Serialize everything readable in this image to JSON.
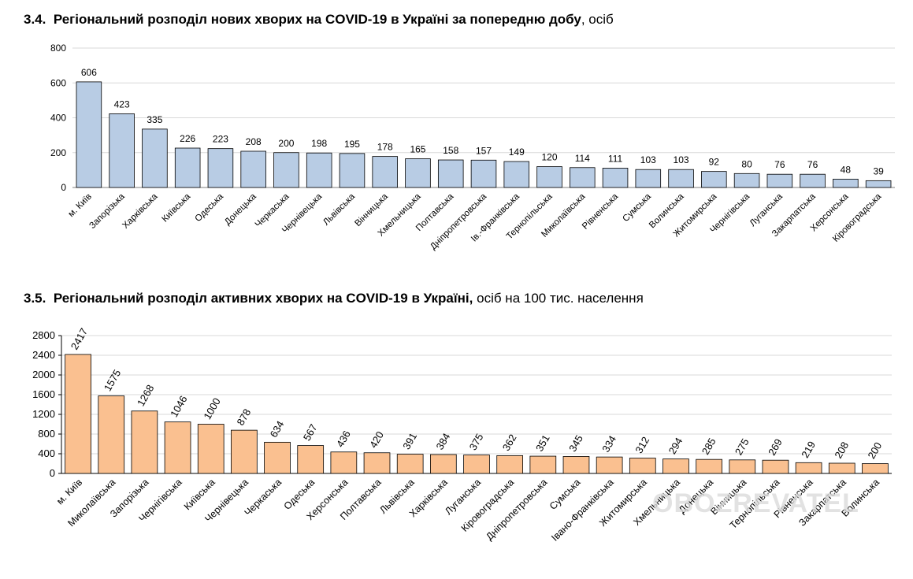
{
  "sections": [
    {
      "number": "3.4.",
      "title_bold": "Регіональний розподіл нових хворих на COVID-19 в Україні за попередню добу",
      "title_normal": ", осіб"
    },
    {
      "number": "3.5.",
      "title_bold": "Регіональний розподіл активних хворих на COVID-19 в Україні,",
      "title_normal": " осіб на 100 тис. населення"
    }
  ],
  "watermark": "OBOZREVATEL",
  "colors": {
    "bar1_fill": "#b8cce4",
    "bar2_fill": "#fac090",
    "bar_stroke": "#000000",
    "grid": "#d9d9d9",
    "axis": "#7f7f7f"
  },
  "chart_data": [
    {
      "type": "bar",
      "title": "Регіональний розподіл нових хворих на COVID-19 в Україні за попередню добу, осіб",
      "categories": [
        "м. Київ",
        "Запорізька",
        "Харківська",
        "Київська",
        "Одеська",
        "Донецька",
        "Черкаська",
        "Чернівецька",
        "Львівська",
        "Вінницька",
        "Хмельницька",
        "Полтавська",
        "Дніпропетровська",
        "Ів.-Франківська",
        "Тернопільська",
        "Миколаївська",
        "Рівненська",
        "Сумська",
        "Волинська",
        "Житомирська",
        "Чернігівська",
        "Луганська",
        "Закарпатська",
        "Херсонська",
        "Кіровоградська"
      ],
      "values": [
        606,
        423,
        335,
        226,
        223,
        208,
        200,
        198,
        195,
        178,
        165,
        158,
        157,
        149,
        120,
        114,
        111,
        103,
        103,
        92,
        80,
        76,
        76,
        48,
        39
      ],
      "ylim": [
        0,
        800
      ],
      "yticks": [
        0,
        200,
        400,
        600,
        800
      ],
      "grid": true,
      "xlabel": "",
      "ylabel": ""
    },
    {
      "type": "bar",
      "title": "Регіональний розподіл активних хворих на COVID-19 в Україні, осіб на 100 тис. населення",
      "categories": [
        "м. Київ",
        "Миколаївська",
        "Запорізька",
        "Чернігівська",
        "Київська",
        "Чернівецька",
        "Черкаська",
        "Одеська",
        "Херсонська",
        "Полтавська",
        "Львівська",
        "Харківська",
        "Луганська",
        "Кіровоградська",
        "Дніпропетровська",
        "Сумська",
        "Івано-Франківська",
        "Житомирська",
        "Хмельницька",
        "Донецька",
        "Вінницька",
        "Тернопільська",
        "Рівненська",
        "Закарпатська",
        "Волинська"
      ],
      "values": [
        2417,
        1575,
        1268,
        1046,
        1000,
        878,
        634,
        567,
        436,
        420,
        391,
        384,
        375,
        362,
        351,
        345,
        334,
        312,
        294,
        285,
        275,
        269,
        219,
        208,
        200
      ],
      "ylim": [
        0,
        2800
      ],
      "yticks": [
        0,
        400,
        800,
        1200,
        1600,
        2000,
        2400,
        2800
      ],
      "grid": true,
      "xlabel": "",
      "ylabel": ""
    }
  ]
}
